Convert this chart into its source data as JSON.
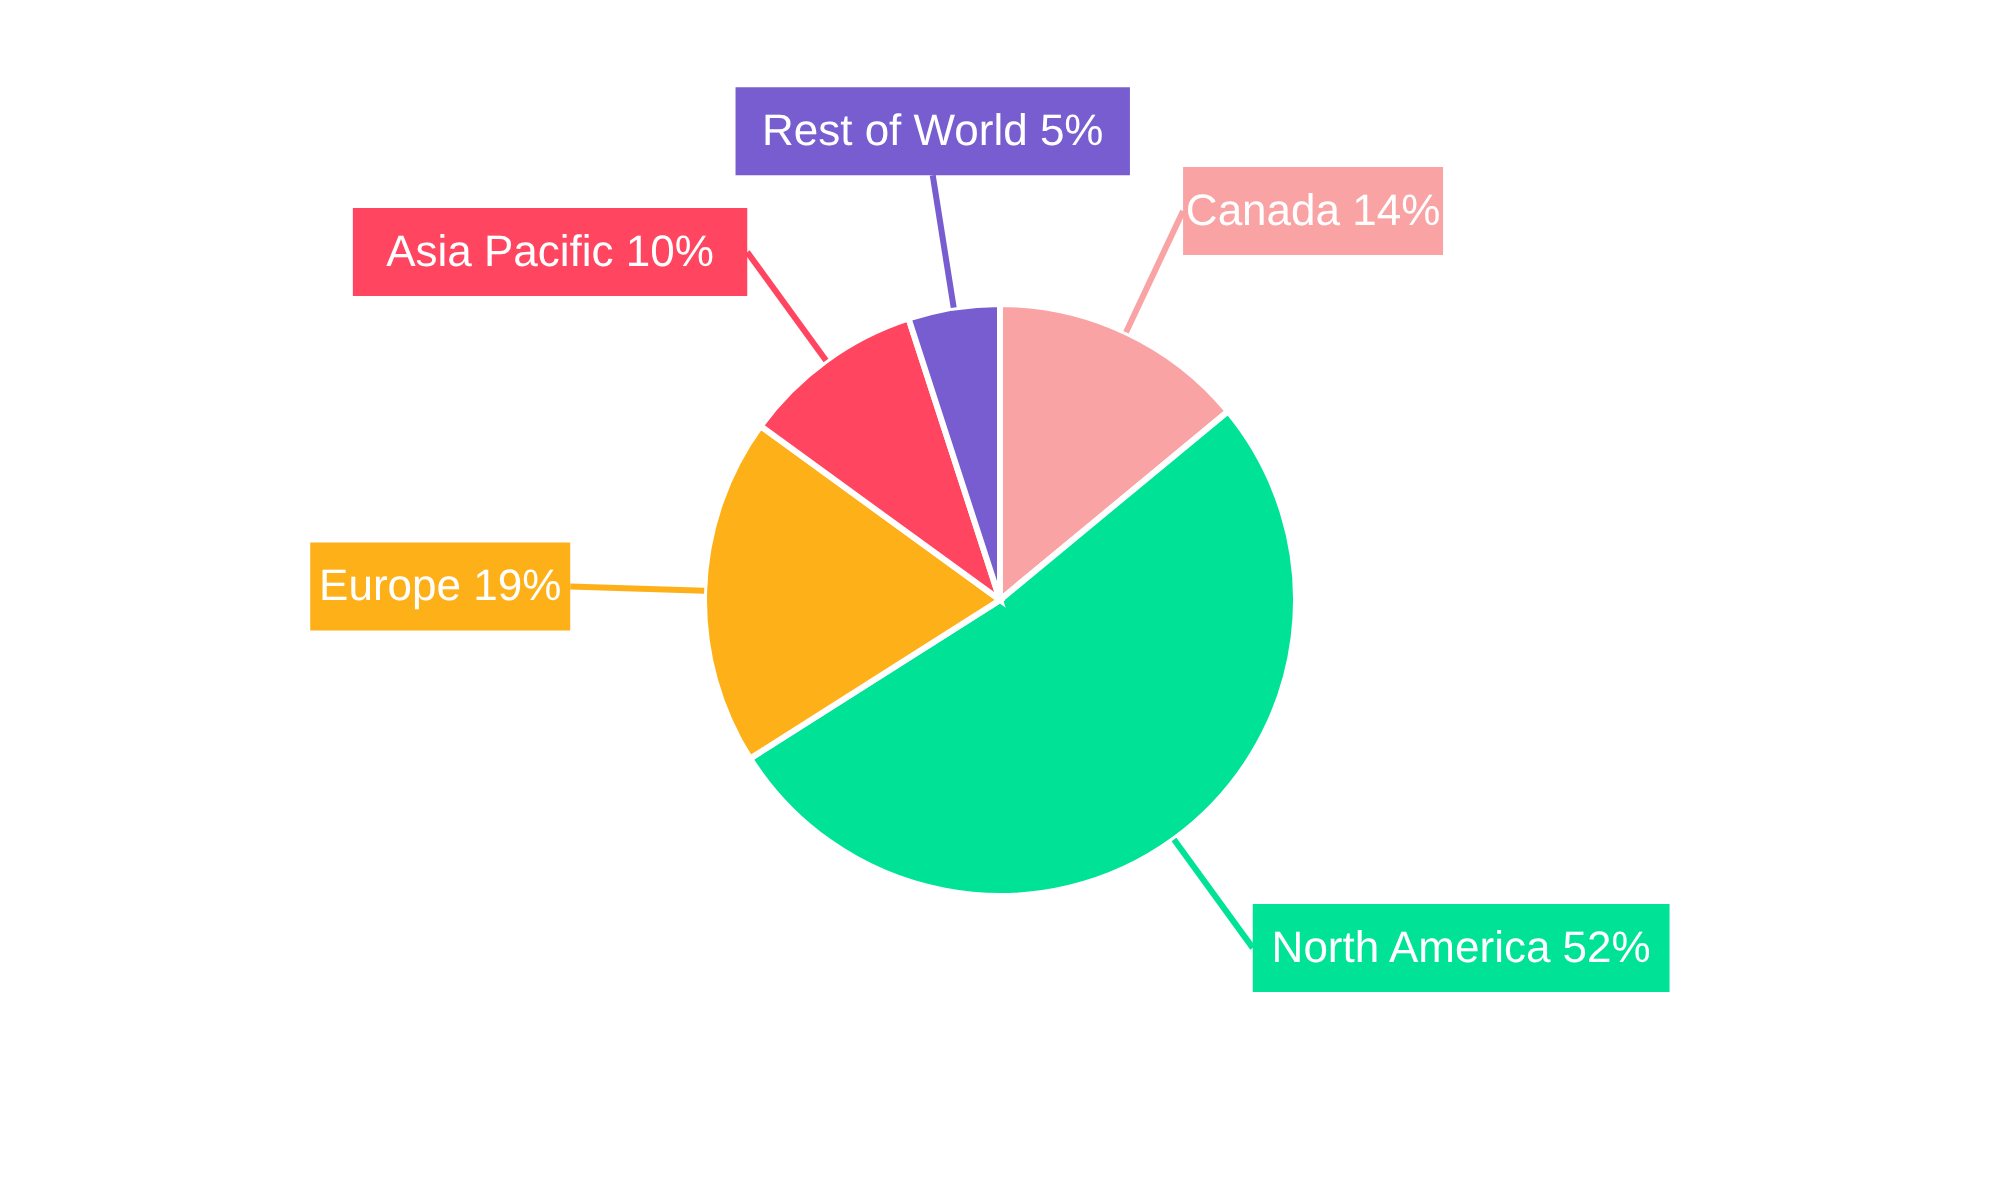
{
  "chart_data": {
    "type": "pie",
    "categories": [
      "Canada",
      "North America",
      "Europe",
      "Asia Pacific",
      "Rest of World"
    ],
    "values": [
      14,
      52,
      19,
      10,
      5
    ],
    "value_labels": [
      "14%",
      "52%",
      "19%",
      "10%",
      "5%"
    ],
    "colors": [
      "#f9a3a4",
      "#00e396",
      "#feb019",
      "#ff4560",
      "#775dd0"
    ]
  }
}
